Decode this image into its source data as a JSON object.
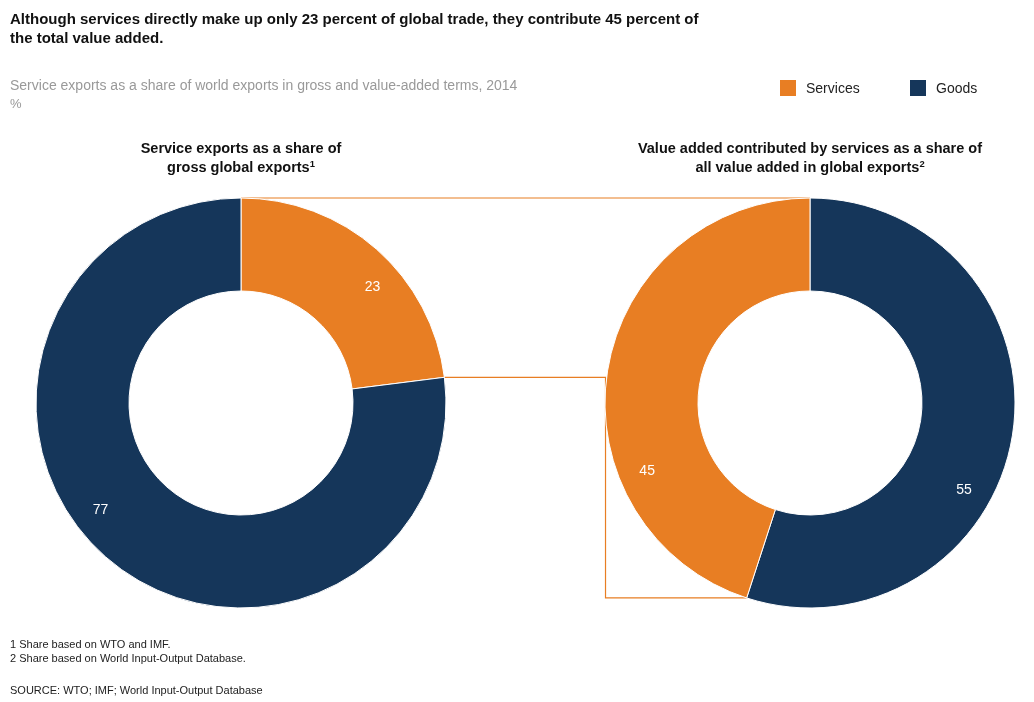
{
  "chart_data": [
    {
      "type": "donut",
      "title": "Service exports as a share of gross global exports$^{1}$",
      "categories": [
        "Services",
        "Goods"
      ],
      "values": [
        23,
        77
      ],
      "colors": [
        "#e87e23",
        "#15365a"
      ],
      "data_labels": true,
      "legend": "top right",
      "annotations": [
        "Although services directly make up only 23 percent of global trade, they contribute 45 percent of the total value added.",
        "Service exports as a share of world exports in gross and value-added terms, 2014",
        "%"
      ]
    },
    {
      "type": "donut",
      "title": "Value added contributed by services as a share of all value added in global exports$^{2}$",
      "categories": [
        null,
        null
      ],
      "values": [
        55,
        45
      ],
      "colors": [
        "#15365a",
        "#e87e23"
      ],
      "data_labels": true,
      "annotations": [
        "1  Share based on WTO and IMF.",
        "2  Share based on World Input-Output Database.",
        "SOURCE:  WTO; IMF; World Input-Output Database"
      ]
    }
  ]
}
